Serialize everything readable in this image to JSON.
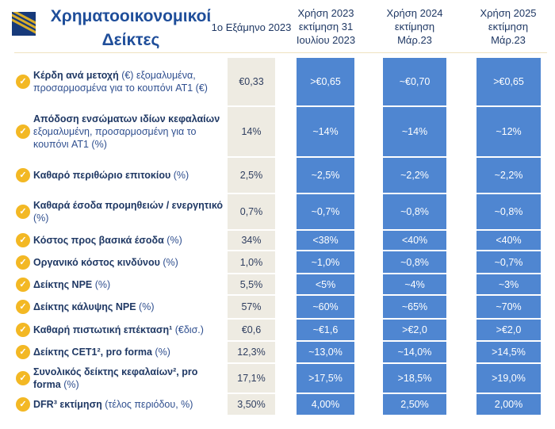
{
  "title": "Χρηματοοικονομικοί Δείκτες",
  "columns": [
    "1ο Εξάμηνο 2023",
    "Χρήση 2023 εκτίμηση 31 Ιουλίου 2023",
    "Χρήση 2024 εκτίμηση Μάρ.23",
    "Χρήση 2025 εκτίμηση Μάρ.23"
  ],
  "rows": [
    {
      "bold": "Κέρδη ανά μετοχή",
      "rest": " (€) εξομαλυμένα, προσαρμοσμένα για το κουπόνι AT1 (€)",
      "v": [
        "€0,33",
        ">€0,65",
        "~€0,70",
        ">€0,65"
      ]
    },
    {
      "bold": "Απόδοση ενσώματων ιδίων κεφαλαίων",
      "rest": " εξομαλυμένη, προσαρμοσμένη για το κουπόνι AT1 (%)",
      "v": [
        "14%",
        "~14%",
        "~14%",
        "~12%"
      ]
    },
    {
      "bold": "Καθαρό περιθώριο επιτοκίου",
      "rest": " (%)",
      "v": [
        "2,5%",
        "~2,5%",
        "~2,2%",
        "~2,2%"
      ]
    },
    {
      "bold": "Καθαρά έσοδα προμηθειών / ενεργητικό",
      "rest": " (%)",
      "v": [
        "0,7%",
        "~0,7%",
        "~0,8%",
        "~0,8%"
      ]
    },
    {
      "bold": "Κόστος προς βασικά έσοδα",
      "rest": " (%)",
      "v": [
        "34%",
        "<38%",
        "<40%",
        "<40%"
      ]
    },
    {
      "bold": "Οργανικό κόστος κινδύνου",
      "rest": " (%)",
      "v": [
        "1,0%",
        "~1,0%",
        "~0,8%",
        "~0,7%"
      ]
    },
    {
      "bold": "Δείκτης NPE",
      "rest": " (%)",
      "v": [
        "5,5%",
        "<5%",
        "~4%",
        "~3%"
      ]
    },
    {
      "bold": "Δείκτης κάλυψης NPE",
      "rest": "  (%)",
      "v": [
        "57%",
        "~60%",
        "~65%",
        "~70%"
      ]
    },
    {
      "bold": "Καθαρή πιστωτική επέκταση¹",
      "rest": " (€δισ.)",
      "v": [
        "€0,6",
        "~€1,6",
        ">€2,0",
        ">€2,0"
      ]
    },
    {
      "bold": "Δείκτης CET1², pro forma",
      "rest": " (%)",
      "v": [
        "12,3%",
        "~13,0%",
        "~14,0%",
        ">14,5%"
      ]
    },
    {
      "bold": "Συνολικός δείκτης κεφαλαίων², pro forma",
      "rest": " (%)",
      "v": [
        "17,1%",
        ">17,5%",
        ">18,5%",
        ">19,0%"
      ]
    },
    {
      "bold": "DFR³ εκτίμηση",
      "rest": " (τέλος περιόδου, %)",
      "v": [
        "3,50%",
        "4,00%",
        "2,50%",
        "2,00%"
      ]
    }
  ]
}
